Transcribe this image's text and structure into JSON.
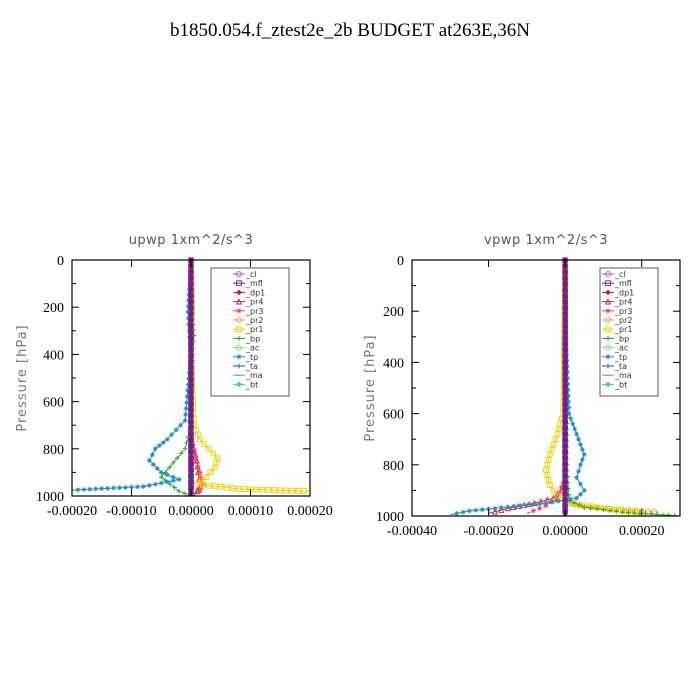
{
  "title": "b1850.054.f_ztest2e_2b  BUDGET at263E,36N",
  "chart_data": [
    {
      "type": "line",
      "title": "upwp   1xm^2/s^3",
      "ylabel": "Pressure [hPa]",
      "xlim": [
        -0.0002,
        0.0002
      ],
      "ylim": [
        1000,
        0
      ],
      "y_reversed": true,
      "xticks": [
        "-0.00020",
        "-0.00010",
        "0.00000",
        "0.00010",
        "0.00020"
      ],
      "yticks": [
        "0",
        "200",
        "400",
        "600",
        "800",
        "1000"
      ],
      "legend_position": "top-right",
      "series": [
        {
          "name": "_cl",
          "color": "#a050d0",
          "x": [
            0,
            0,
            0,
            0,
            0,
            0,
            0,
            0,
            0,
            0,
            0
          ],
          "y": [
            0,
            100,
            200,
            300,
            400,
            500,
            600,
            700,
            800,
            900,
            1000
          ]
        },
        {
          "name": "_mfl",
          "color": "#7a1a8a",
          "x": [
            0,
            0,
            0,
            0,
            0,
            0,
            0,
            0,
            0,
            0,
            0
          ],
          "y": [
            0,
            100,
            200,
            300,
            400,
            500,
            600,
            700,
            800,
            900,
            1000
          ]
        },
        {
          "name": "_dp1",
          "color": "#c01060",
          "x": [
            0,
            0,
            0,
            0,
            0,
            0,
            0,
            0,
            0,
            0,
            0
          ],
          "y": [
            0,
            100,
            200,
            300,
            400,
            500,
            600,
            700,
            800,
            900,
            1000
          ]
        },
        {
          "name": "_pr4",
          "color": "#d02040",
          "x": [
            0,
            0,
            0,
            0,
            0,
            0,
            5e-06,
            1e-05,
            1.2e-05,
            1.5e-05,
            5e-06
          ],
          "y": [
            0,
            200,
            400,
            600,
            700,
            750,
            800,
            850,
            900,
            960,
            1000
          ]
        },
        {
          "name": "_pr3",
          "color": "#ff4060",
          "x": [
            0,
            0,
            0,
            0,
            3e-06,
            8e-06,
            1.5e-05,
            2e-05,
            1.5e-05,
            5e-06
          ],
          "y": [
            0,
            300,
            600,
            700,
            780,
            850,
            900,
            950,
            980,
            1000
          ]
        },
        {
          "name": "_pr2",
          "color": "#f0a030",
          "x": [
            0,
            0,
            0,
            0,
            0,
            0,
            0,
            0,
            0
          ],
          "y": [
            0,
            200,
            400,
            600,
            800,
            900,
            950,
            980,
            1000
          ]
        },
        {
          "name": "_pr1",
          "color": "#f0d000",
          "x": [
            0,
            2e-06,
            1e-06,
            0,
            5e-06,
            1.5e-05,
            3e-05,
            4.5e-05,
            4e-05,
            2.5e-05,
            1e-05,
            8e-05,
            0.0002
          ],
          "y": [
            0,
            200,
            250,
            400,
            700,
            760,
            800,
            840,
            880,
            920,
            950,
            970,
            980
          ]
        },
        {
          "name": "_bp",
          "color": "#20a020",
          "x": [
            0,
            2e-06,
            5e-06,
            3e-06,
            0,
            -1e-05,
            -3e-05,
            -5e-05,
            -2e-05,
            0
          ],
          "y": [
            0,
            250,
            320,
            400,
            700,
            800,
            860,
            920,
            980,
            1000
          ]
        },
        {
          "name": "_ac",
          "color": "#80e060",
          "x": [
            0,
            0,
            0,
            0,
            0
          ],
          "y": [
            0,
            300,
            600,
            900,
            1000
          ]
        },
        {
          "name": "_tp",
          "color": "#2090c0",
          "x": [
            0,
            -5e-06,
            -3e-06,
            0,
            -1e-05,
            -4e-05,
            -6e-05,
            -7e-05,
            -5e-05,
            -2e-05,
            -8e-05,
            -0.0002
          ],
          "y": [
            0,
            220,
            300,
            400,
            680,
            760,
            800,
            850,
            900,
            930,
            960,
            975
          ]
        },
        {
          "name": "_ta",
          "color": "#3040d0",
          "x": [
            0,
            0,
            0,
            0,
            0
          ],
          "y": [
            0,
            300,
            600,
            900,
            1000
          ]
        },
        {
          "name": "_ma",
          "color": "#60a0d0",
          "x": [
            0,
            0,
            0,
            0,
            0
          ],
          "y": [
            0,
            300,
            600,
            900,
            1000
          ]
        },
        {
          "name": "_bt",
          "color": "#20d0d0",
          "x": [
            0,
            0,
            0,
            0,
            0
          ],
          "y": [
            0,
            300,
            600,
            900,
            1000
          ]
        }
      ]
    },
    {
      "type": "line",
      "title": "vpwp   1xm^2/s^3",
      "ylabel": "Pressure [hPa]",
      "xlim": [
        -0.0004,
        0.0003
      ],
      "ylim": [
        1000,
        0
      ],
      "y_reversed": true,
      "xticks": [
        "-0.00040",
        "-0.00020",
        "0.00000",
        "0.00020"
      ],
      "yticks": [
        "0",
        "200",
        "400",
        "600",
        "800",
        "1000"
      ],
      "legend_position": "top-right",
      "series": [
        {
          "name": "_cl",
          "color": "#a050d0",
          "x": [
            0,
            0,
            0,
            0,
            0,
            0,
            0,
            0,
            0,
            0,
            0
          ],
          "y": [
            0,
            100,
            200,
            300,
            400,
            500,
            600,
            700,
            800,
            900,
            1000
          ]
        },
        {
          "name": "_mfl",
          "color": "#7a1a8a",
          "x": [
            0,
            0,
            0,
            0,
            0,
            0,
            0,
            0,
            0,
            0,
            0
          ],
          "y": [
            0,
            100,
            200,
            300,
            400,
            500,
            600,
            700,
            800,
            900,
            1000
          ]
        },
        {
          "name": "_dp1",
          "color": "#c01060",
          "x": [
            0,
            0,
            0,
            0,
            0,
            0,
            0,
            0,
            0,
            0
          ],
          "y": [
            0,
            100,
            200,
            300,
            400,
            500,
            600,
            700,
            800,
            1000
          ]
        },
        {
          "name": "_pr4",
          "color": "#d02040",
          "x": [
            0,
            0,
            0,
            0,
            -1e-05,
            -3e-05,
            -8e-05,
            -0.00015,
            -0.0002
          ],
          "y": [
            0,
            400,
            700,
            850,
            900,
            930,
            950,
            970,
            990
          ]
        },
        {
          "name": "_pr3",
          "color": "#ff4060",
          "x": [
            0,
            0,
            0,
            -2e-05,
            -5e-05,
            -0.0001
          ],
          "y": [
            0,
            600,
            850,
            930,
            960,
            990
          ]
        },
        {
          "name": "_pr2",
          "color": "#f0a030",
          "x": [
            0,
            0,
            0,
            5e-06,
            1e-05,
            5e-05,
            0.00015,
            0.00025
          ],
          "y": [
            0,
            600,
            850,
            920,
            950,
            965,
            975,
            985
          ]
        },
        {
          "name": "_pr1",
          "color": "#f0d000",
          "x": [
            0,
            -5e-06,
            -2e-05,
            -4e-05,
            -5e-05,
            -4e-05,
            -2e-05,
            2e-05,
            0.0001,
            0.00022
          ],
          "y": [
            0,
            600,
            680,
            760,
            820,
            880,
            920,
            950,
            970,
            990
          ]
        },
        {
          "name": "_bp",
          "color": "#20a020",
          "x": [
            0,
            3e-06,
            5e-06,
            1e-05,
            5e-05,
            0.00015,
            0.0003
          ],
          "y": [
            0,
            500,
            800,
            940,
            965,
            985,
            1000
          ]
        },
        {
          "name": "_ac",
          "color": "#80e060",
          "x": [
            0,
            0,
            0,
            0,
            0
          ],
          "y": [
            0,
            300,
            600,
            900,
            1000
          ]
        },
        {
          "name": "_tp",
          "color": "#2090c0",
          "x": [
            0,
            2e-06,
            1e-05,
            3e-05,
            5e-05,
            4e-05,
            3e-05,
            5e-05,
            3e-05,
            -5e-05,
            -0.00015,
            -0.00025,
            -0.0003
          ],
          "y": [
            0,
            300,
            600,
            680,
            760,
            800,
            850,
            900,
            930,
            950,
            965,
            980,
            995
          ]
        },
        {
          "name": "_ta",
          "color": "#3040d0",
          "x": [
            0,
            0,
            0,
            0,
            0
          ],
          "y": [
            0,
            300,
            600,
            900,
            1000
          ]
        },
        {
          "name": "_ma",
          "color": "#60a0d0",
          "x": [
            0,
            0,
            0,
            0,
            0
          ],
          "y": [
            0,
            300,
            600,
            900,
            1000
          ]
        },
        {
          "name": "_bt",
          "color": "#20d0d0",
          "x": [
            0,
            0,
            0,
            0,
            0
          ],
          "y": [
            0,
            300,
            600,
            900,
            1000
          ]
        }
      ]
    }
  ]
}
